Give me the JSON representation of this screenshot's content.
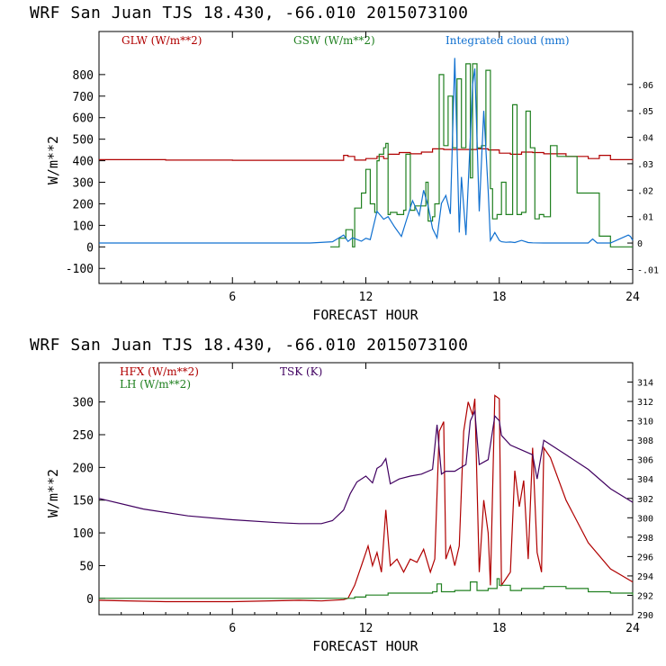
{
  "chart_data": [
    {
      "type": "line",
      "title": "WRF  San Juan TJS  18.430, -66.010  2015073100",
      "xlabel": "FORECAST HOUR",
      "ylabel": "W/m**2",
      "xlim": [
        0,
        24
      ],
      "ylim": [
        -170,
        1000
      ],
      "xticks": [
        6,
        12,
        18,
        24
      ],
      "yticks": [
        -100,
        0,
        100,
        200,
        300,
        400,
        500,
        600,
        700,
        800
      ],
      "right_axis": {
        "label": "Integrated cloud (mm)",
        "ylim": [
          -0.0153,
          0.08
        ],
        "ticks": [
          -0.01,
          0,
          0.01,
          0.02,
          0.03,
          0.04,
          0.05,
          0.06
        ],
        "tick_labels": [
          "-.01",
          "0",
          ".01",
          ".02",
          ".03",
          ".04",
          ".05",
          ".06"
        ]
      },
      "series": [
        {
          "name": "GLW (W/m**2)",
          "color": "#b00000",
          "axis": "left",
          "x": [
            0,
            3,
            6,
            9,
            10.5,
            11,
            11.2,
            11.5,
            12,
            12.5,
            12.8,
            13,
            13.5,
            14,
            14.5,
            15,
            15.5,
            16,
            17,
            17.5,
            18,
            18.5,
            19,
            19.5,
            20,
            21,
            22,
            22.5,
            23,
            24
          ],
          "values": [
            405,
            403,
            402,
            402,
            402,
            425,
            420,
            403,
            410,
            420,
            410,
            430,
            438,
            432,
            440,
            455,
            452,
            452,
            455,
            450,
            435,
            430,
            440,
            438,
            432,
            420,
            410,
            425,
            405,
            402
          ]
        },
        {
          "name": "GSW (W/m**2)",
          "color": "#208020",
          "axis": "left",
          "x": [
            10.4,
            10.8,
            11.1,
            11.4,
            11.5,
            11.8,
            12.0,
            12.2,
            12.4,
            12.5,
            12.6,
            12.8,
            12.9,
            13.0,
            13.1,
            13.4,
            13.7,
            13.8,
            14.0,
            14.2,
            14.5,
            14.7,
            14.8,
            15.0,
            15.1,
            15.3,
            15.5,
            15.7,
            15.9,
            16.1,
            16.3,
            16.5,
            16.7,
            16.8,
            17.0,
            17.2,
            17.4,
            17.6,
            17.7,
            17.9,
            18.1,
            18.3,
            18.6,
            18.8,
            19.0,
            19.2,
            19.4,
            19.6,
            19.8,
            20.0,
            20.3,
            20.6,
            21.5,
            22.5,
            23.0,
            24.0
          ],
          "values": [
            0,
            40,
            80,
            0,
            180,
            250,
            360,
            200,
            160,
            400,
            430,
            460,
            480,
            150,
            160,
            150,
            170,
            430,
            170,
            190,
            190,
            300,
            120,
            140,
            200,
            800,
            470,
            700,
            460,
            780,
            460,
            850,
            320,
            850,
            460,
            470,
            820,
            270,
            130,
            150,
            300,
            150,
            660,
            150,
            160,
            630,
            460,
            130,
            150,
            140,
            470,
            420,
            250,
            50,
            0,
            0
          ]
        },
        {
          "name": "Integrated cloud (mm)",
          "color": "#1070d0",
          "axis": "right",
          "x": [
            0,
            9.5,
            10.5,
            11.0,
            11.2,
            11.4,
            11.8,
            12.0,
            12.2,
            12.5,
            12.8,
            13.0,
            13.3,
            13.6,
            13.8,
            14.1,
            14.4,
            14.6,
            14.8,
            15.0,
            15.2,
            15.4,
            15.6,
            15.8,
            16.0,
            16.2,
            16.3,
            16.5,
            16.7,
            16.8,
            16.9,
            17.1,
            17.3,
            17.5,
            17.6,
            17.8,
            18.0,
            18.1,
            18.3,
            18.5,
            18.7,
            19.0,
            19.3,
            19.5,
            20.0,
            22.0,
            22.2,
            22.4,
            23.0,
            23.8,
            23.9,
            24.0
          ],
          "values": [
            0,
            0,
            0.0005,
            0.003,
            0.0006,
            0.002,
            0.0007,
            0.0018,
            0.0013,
            0.012,
            0.009,
            0.01,
            0.006,
            0.0025,
            0.008,
            0.016,
            0.0105,
            0.02,
            0.014,
            0.0055,
            0.002,
            0.015,
            0.018,
            0.011,
            0.07,
            0.004,
            0.025,
            0.003,
            0.04,
            0.06,
            0.066,
            0.012,
            0.05,
            0.02,
            0.001,
            0.004,
            0.001,
            0.0005,
            0.0003,
            0.0004,
            0.0002,
            0.001,
            0.0002,
            0.0001,
            0,
            0,
            0.0015,
            0,
            0,
            0.003,
            0.0025,
            0.001
          ]
        }
      ]
    },
    {
      "type": "line",
      "title": "WRF  San Juan TJS  18.430, -66.010  2015073100",
      "xlabel": "FORECAST HOUR",
      "ylabel": "W/m**2",
      "xlim": [
        0,
        24
      ],
      "ylim": [
        -25,
        360
      ],
      "xticks": [
        6,
        12,
        18,
        24
      ],
      "yticks": [
        0,
        50,
        100,
        150,
        200,
        250,
        300
      ],
      "right_axis": {
        "label": "TSK (K)",
        "ylim": [
          290,
          316
        ],
        "ticks": [
          290,
          292,
          294,
          296,
          298,
          300,
          302,
          304,
          306,
          308,
          310,
          312,
          314
        ],
        "tick_labels": [
          "290",
          "292",
          "294",
          "296",
          "298",
          "300",
          "302",
          "304",
          "306",
          "308",
          "310",
          "312",
          "314"
        ]
      },
      "series": [
        {
          "name": "HFX (W/m**2)",
          "color": "#b00000",
          "axis": "left",
          "x": [
            0,
            3,
            6,
            9,
            10,
            11,
            11.2,
            11.5,
            11.8,
            12.1,
            12.3,
            12.5,
            12.7,
            12.9,
            13.1,
            13.4,
            13.7,
            14.0,
            14.3,
            14.6,
            14.9,
            15.1,
            15.3,
            15.5,
            15.6,
            15.8,
            16.0,
            16.2,
            16.4,
            16.6,
            16.8,
            16.9,
            17.1,
            17.3,
            17.5,
            17.6,
            17.8,
            18.0,
            18.1,
            18.3,
            18.5,
            18.7,
            18.9,
            19.1,
            19.3,
            19.5,
            19.7,
            19.9,
            20.0,
            20.3,
            21.0,
            22.0,
            23.0,
            24.0
          ],
          "values": [
            -3,
            -5,
            -5,
            -3,
            -4,
            -2,
            0,
            20,
            50,
            80,
            50,
            70,
            40,
            135,
            50,
            60,
            40,
            60,
            55,
            75,
            40,
            60,
            255,
            270,
            60,
            80,
            50,
            80,
            255,
            300,
            280,
            305,
            40,
            150,
            100,
            20,
            310,
            305,
            20,
            30,
            40,
            195,
            140,
            180,
            60,
            230,
            70,
            40,
            230,
            215,
            150,
            85,
            45,
            25
          ]
        },
        {
          "name": "LH (W/m**2)",
          "color": "#208020",
          "axis": "left",
          "x": [
            0,
            3,
            6,
            9,
            10,
            11,
            11.5,
            12,
            13,
            14,
            15,
            15.2,
            15.4,
            16,
            16.5,
            16.7,
            17,
            17.5,
            17.9,
            18,
            18.5,
            19,
            20,
            21,
            22,
            23,
            24
          ],
          "values": [
            0,
            0,
            0,
            0,
            0,
            0,
            2,
            5,
            8,
            8,
            10,
            22,
            10,
            12,
            12,
            25,
            12,
            15,
            30,
            20,
            12,
            15,
            18,
            15,
            10,
            8,
            5
          ]
        },
        {
          "name": "TSK (K)",
          "color": "#400060",
          "axis": "right",
          "x": [
            0,
            2,
            4,
            6,
            8,
            9,
            10,
            10.5,
            11,
            11.3,
            11.6,
            12,
            12.3,
            12.5,
            12.7,
            12.9,
            13.1,
            13.5,
            14,
            14.5,
            15,
            15.2,
            15.4,
            15.6,
            16,
            16.5,
            16.7,
            16.9,
            17.1,
            17.5,
            17.8,
            18.0,
            18.1,
            18.5,
            19,
            19.5,
            19.7,
            20,
            21,
            22,
            23,
            24
          ],
          "values": [
            302.0,
            300.9,
            300.2,
            299.8,
            299.5,
            299.4,
            299.4,
            299.7,
            300.8,
            302.5,
            303.7,
            304.3,
            303.6,
            305.1,
            305.4,
            306.1,
            303.5,
            304.0,
            304.3,
            304.5,
            305.0,
            309.6,
            304.5,
            304.8,
            304.8,
            305.5,
            310.0,
            311.0,
            305.5,
            306.0,
            310.5,
            310.0,
            308.5,
            307.5,
            307.0,
            306.5,
            304.0,
            308.0,
            306.5,
            305.0,
            303.0,
            301.6
          ]
        }
      ]
    }
  ]
}
